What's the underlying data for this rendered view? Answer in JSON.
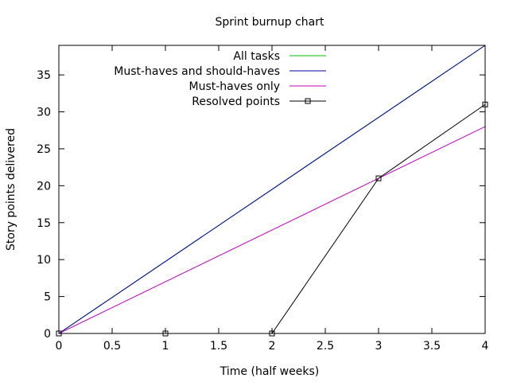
{
  "chart_data": {
    "type": "line",
    "title": "Sprint burnup chart",
    "xlabel": "Time (half weeks)",
    "ylabel": "Story points delivered",
    "xlim": [
      0,
      4
    ],
    "ylim": [
      0,
      39
    ],
    "xticks": [
      "0",
      "0.5",
      "1",
      "1.5",
      "2",
      "2.5",
      "3",
      "3.5",
      "4"
    ],
    "yticks": [
      "0",
      "5",
      "10",
      "15",
      "20",
      "25",
      "30",
      "35"
    ],
    "grid": false,
    "legend_position": "top-right",
    "series": [
      {
        "name": "All tasks",
        "color": "#00c000",
        "marker": "none",
        "x": [
          0,
          4
        ],
        "y": [
          0,
          39
        ]
      },
      {
        "name": "Must-haves and should-haves",
        "color": "#0000a0",
        "marker": "none",
        "x": [
          0,
          4
        ],
        "y": [
          0,
          39
        ]
      },
      {
        "name": "Must-haves only",
        "color": "#c000c0",
        "marker": "none",
        "x": [
          0,
          4
        ],
        "y": [
          0,
          28
        ]
      },
      {
        "name": "Resolved points",
        "color": "#000000",
        "marker": "square",
        "x": [
          0,
          1,
          2,
          3,
          4
        ],
        "y": [
          0,
          0,
          0,
          21,
          31
        ]
      }
    ]
  }
}
